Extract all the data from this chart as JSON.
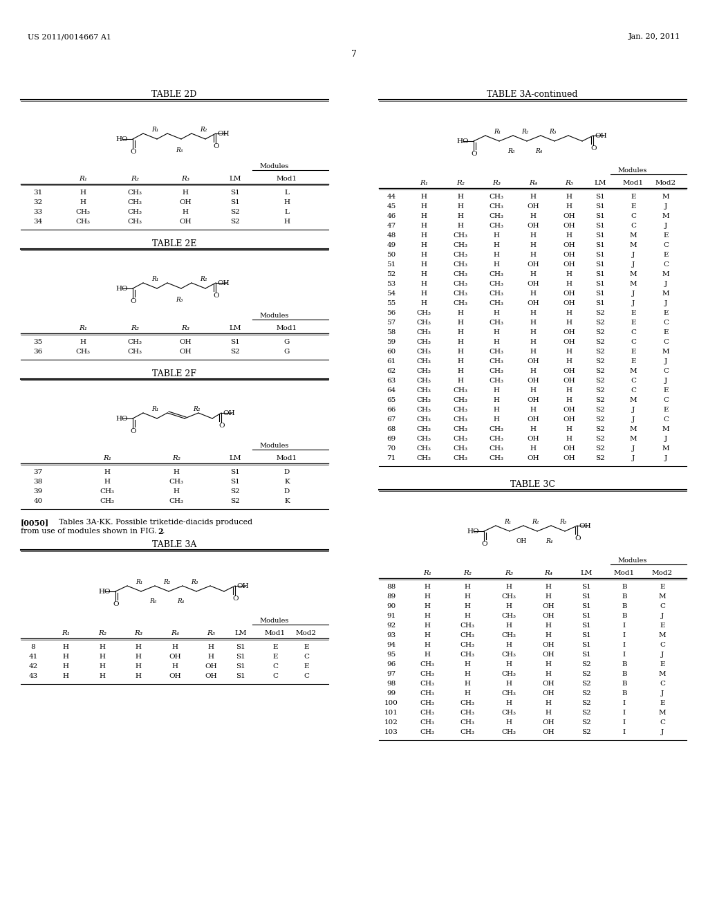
{
  "header_left": "US 2011/0014667 A1",
  "header_right": "Jan. 20, 2011",
  "page_number": "7",
  "bg_color": "#ffffff",
  "tables": {
    "2D": {
      "title": "TABLE 2D",
      "cols": [
        "",
        "R₁",
        "R₂",
        "R₃",
        "LM",
        "Mod1"
      ],
      "rows": [
        [
          "31",
          "H",
          "CH₃",
          "H",
          "S1",
          "L"
        ],
        [
          "32",
          "H",
          "CH₃",
          "OH",
          "S1",
          "H"
        ],
        [
          "33",
          "CH₃",
          "CH₃",
          "H",
          "S2",
          "L"
        ],
        [
          "34",
          "CH₃",
          "CH₃",
          "OH",
          "S2",
          "H"
        ]
      ]
    },
    "2E": {
      "title": "TABLE 2E",
      "cols": [
        "",
        "R₁",
        "R₂",
        "R₃",
        "LM",
        "Mod1"
      ],
      "rows": [
        [
          "35",
          "H",
          "CH₃",
          "OH",
          "S1",
          "G"
        ],
        [
          "36",
          "CH₃",
          "CH₃",
          "OH",
          "S2",
          "G"
        ]
      ]
    },
    "2F": {
      "title": "TABLE 2F",
      "cols": [
        "",
        "R₁",
        "R₂",
        "LM",
        "Mod1"
      ],
      "rows": [
        [
          "37",
          "H",
          "H",
          "S1",
          "D"
        ],
        [
          "38",
          "H",
          "CH₃",
          "S1",
          "K"
        ],
        [
          "39",
          "CH₃",
          "H",
          "S2",
          "D"
        ],
        [
          "40",
          "CH₃",
          "CH₃",
          "S2",
          "K"
        ]
      ]
    },
    "3A": {
      "title": "TABLE 3A",
      "cols": [
        "",
        "R₁",
        "R₂",
        "R₃",
        "R₄",
        "R₅",
        "LM",
        "Mod1",
        "Mod2"
      ],
      "rows": [
        [
          "8",
          "H",
          "H",
          "H",
          "H",
          "H",
          "S1",
          "E",
          "E"
        ],
        [
          "41",
          "H",
          "H",
          "H",
          "OH",
          "H",
          "S1",
          "E",
          "C"
        ],
        [
          "42",
          "H",
          "H",
          "H",
          "H",
          "OH",
          "S1",
          "C",
          "E"
        ],
        [
          "43",
          "H",
          "H",
          "H",
          "OH",
          "OH",
          "S1",
          "C",
          "C"
        ]
      ]
    },
    "3A_cont": {
      "title": "TABLE 3A-continued",
      "cols": [
        "",
        "R₁",
        "R₂",
        "R₃",
        "R₄",
        "R₅",
        "LM",
        "Mod1",
        "Mod2"
      ],
      "rows": [
        [
          "44",
          "H",
          "H",
          "CH₃",
          "H",
          "H",
          "S1",
          "E",
          "M"
        ],
        [
          "45",
          "H",
          "H",
          "CH₃",
          "OH",
          "H",
          "S1",
          "E",
          "J"
        ],
        [
          "46",
          "H",
          "H",
          "CH₃",
          "H",
          "OH",
          "S1",
          "C",
          "M"
        ],
        [
          "47",
          "H",
          "H",
          "CH₃",
          "OH",
          "OH",
          "S1",
          "C",
          "J"
        ],
        [
          "48",
          "H",
          "CH₃",
          "H",
          "H",
          "H",
          "S1",
          "M",
          "E"
        ],
        [
          "49",
          "H",
          "CH₃",
          "H",
          "H",
          "OH",
          "S1",
          "M",
          "C"
        ],
        [
          "50",
          "H",
          "CH₃",
          "H",
          "H",
          "OH",
          "S1",
          "J",
          "E"
        ],
        [
          "51",
          "H",
          "CH₃",
          "H",
          "OH",
          "OH",
          "S1",
          "J",
          "C"
        ],
        [
          "52",
          "H",
          "CH₃",
          "CH₃",
          "H",
          "H",
          "S1",
          "M",
          "M"
        ],
        [
          "53",
          "H",
          "CH₃",
          "CH₃",
          "OH",
          "H",
          "S1",
          "M",
          "J"
        ],
        [
          "54",
          "H",
          "CH₃",
          "CH₃",
          "H",
          "OH",
          "S1",
          "J",
          "M"
        ],
        [
          "55",
          "H",
          "CH₃",
          "CH₃",
          "OH",
          "OH",
          "S1",
          "J",
          "J"
        ],
        [
          "56",
          "CH₃",
          "H",
          "H",
          "H",
          "H",
          "S2",
          "E",
          "E"
        ],
        [
          "57",
          "CH₃",
          "H",
          "CH₃",
          "H",
          "H",
          "S2",
          "E",
          "C"
        ],
        [
          "58",
          "CH₃",
          "H",
          "H",
          "H",
          "OH",
          "S2",
          "C",
          "E"
        ],
        [
          "59",
          "CH₃",
          "H",
          "H",
          "H",
          "OH",
          "S2",
          "C",
          "C"
        ],
        [
          "60",
          "CH₃",
          "H",
          "CH₃",
          "H",
          "H",
          "S2",
          "E",
          "M"
        ],
        [
          "61",
          "CH₃",
          "H",
          "CH₃",
          "OH",
          "H",
          "S2",
          "E",
          "J"
        ],
        [
          "62",
          "CH₃",
          "H",
          "CH₃",
          "H",
          "OH",
          "S2",
          "M",
          "C"
        ],
        [
          "63",
          "CH₃",
          "H",
          "CH₃",
          "OH",
          "OH",
          "S2",
          "C",
          "J"
        ],
        [
          "64",
          "CH₃",
          "CH₃",
          "H",
          "H",
          "H",
          "S2",
          "C",
          "E"
        ],
        [
          "65",
          "CH₃",
          "CH₃",
          "H",
          "OH",
          "H",
          "S2",
          "M",
          "C"
        ],
        [
          "66",
          "CH₃",
          "CH₃",
          "H",
          "H",
          "OH",
          "S2",
          "J",
          "E"
        ],
        [
          "67",
          "CH₃",
          "CH₃",
          "H",
          "OH",
          "OH",
          "S2",
          "J",
          "C"
        ],
        [
          "68",
          "CH₃",
          "CH₃",
          "CH₃",
          "H",
          "H",
          "S2",
          "M",
          "M"
        ],
        [
          "69",
          "CH₃",
          "CH₃",
          "CH₃",
          "OH",
          "H",
          "S2",
          "M",
          "J"
        ],
        [
          "70",
          "CH₃",
          "CH₃",
          "CH₃",
          "H",
          "OH",
          "S2",
          "J",
          "M"
        ],
        [
          "71",
          "CH₃",
          "CH₃",
          "CH₃",
          "OH",
          "OH",
          "S2",
          "J",
          "J"
        ]
      ]
    },
    "3C": {
      "title": "TABLE 3C",
      "cols": [
        "",
        "R₁",
        "R₂",
        "R₃",
        "R₄",
        "LM",
        "Mod1",
        "Mod2"
      ],
      "rows": [
        [
          "88",
          "H",
          "H",
          "H",
          "H",
          "S1",
          "B",
          "E"
        ],
        [
          "89",
          "H",
          "H",
          "CH₃",
          "H",
          "S1",
          "B",
          "M"
        ],
        [
          "90",
          "H",
          "H",
          "H",
          "OH",
          "S1",
          "B",
          "C"
        ],
        [
          "91",
          "H",
          "H",
          "CH₃",
          "OH",
          "S1",
          "B",
          "J"
        ],
        [
          "92",
          "H",
          "CH₃",
          "H",
          "H",
          "S1",
          "I",
          "E"
        ],
        [
          "93",
          "H",
          "CH₃",
          "CH₃",
          "H",
          "S1",
          "I",
          "M"
        ],
        [
          "94",
          "H",
          "CH₃",
          "H",
          "OH",
          "S1",
          "I",
          "C"
        ],
        [
          "95",
          "H",
          "CH₃",
          "CH₃",
          "OH",
          "S1",
          "I",
          "J"
        ],
        [
          "96",
          "CH₃",
          "H",
          "H",
          "H",
          "S2",
          "B",
          "E"
        ],
        [
          "97",
          "CH₃",
          "H",
          "CH₃",
          "H",
          "S2",
          "B",
          "M"
        ],
        [
          "98",
          "CH₃",
          "H",
          "H",
          "OH",
          "S2",
          "B",
          "C"
        ],
        [
          "99",
          "CH₃",
          "H",
          "CH₃",
          "OH",
          "S2",
          "B",
          "J"
        ],
        [
          "100",
          "CH₃",
          "CH₃",
          "H",
          "H",
          "S2",
          "I",
          "E"
        ],
        [
          "101",
          "CH₃",
          "CH₃",
          "CH₃",
          "H",
          "S2",
          "I",
          "M"
        ],
        [
          "102",
          "CH₃",
          "CH₃",
          "H",
          "OH",
          "S2",
          "I",
          "C"
        ],
        [
          "103",
          "CH₃",
          "CH₃",
          "CH₃",
          "OH",
          "S2",
          "I",
          "J"
        ]
      ]
    }
  }
}
